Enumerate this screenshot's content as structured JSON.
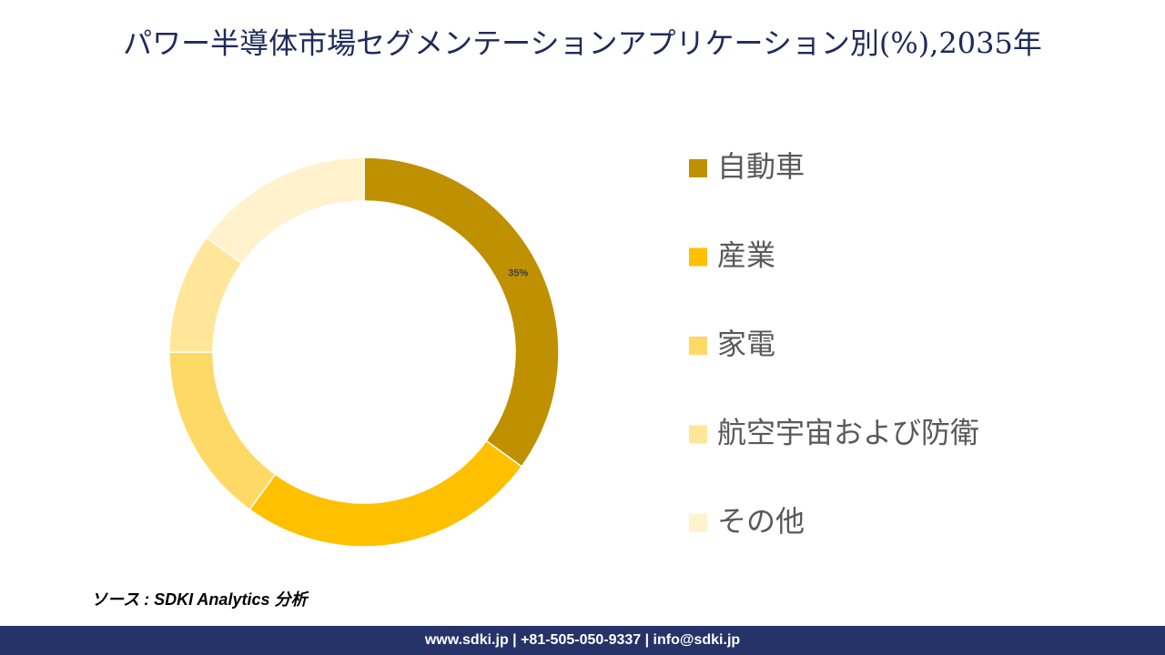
{
  "chart_data": {
    "type": "donut",
    "title": "パワー半導体市場セグメンテーションアプリケーション別(%),2035年",
    "categories": [
      "自動車",
      "産業",
      "家電",
      "航空宇宙および防衛",
      "その他"
    ],
    "values": [
      35,
      25,
      15,
      10,
      15
    ],
    "value_labels": [
      "35%",
      null,
      null,
      null,
      null
    ],
    "colors": [
      "#bf9000",
      "#ffc000",
      "#ffd966",
      "#ffe699",
      "#fff2cc"
    ],
    "legend": "right"
  },
  "source": "ソース : SDKI Analytics 分析",
  "footer": "www.sdki.jp | +81-505-050-9337 | info@sdki.jp"
}
